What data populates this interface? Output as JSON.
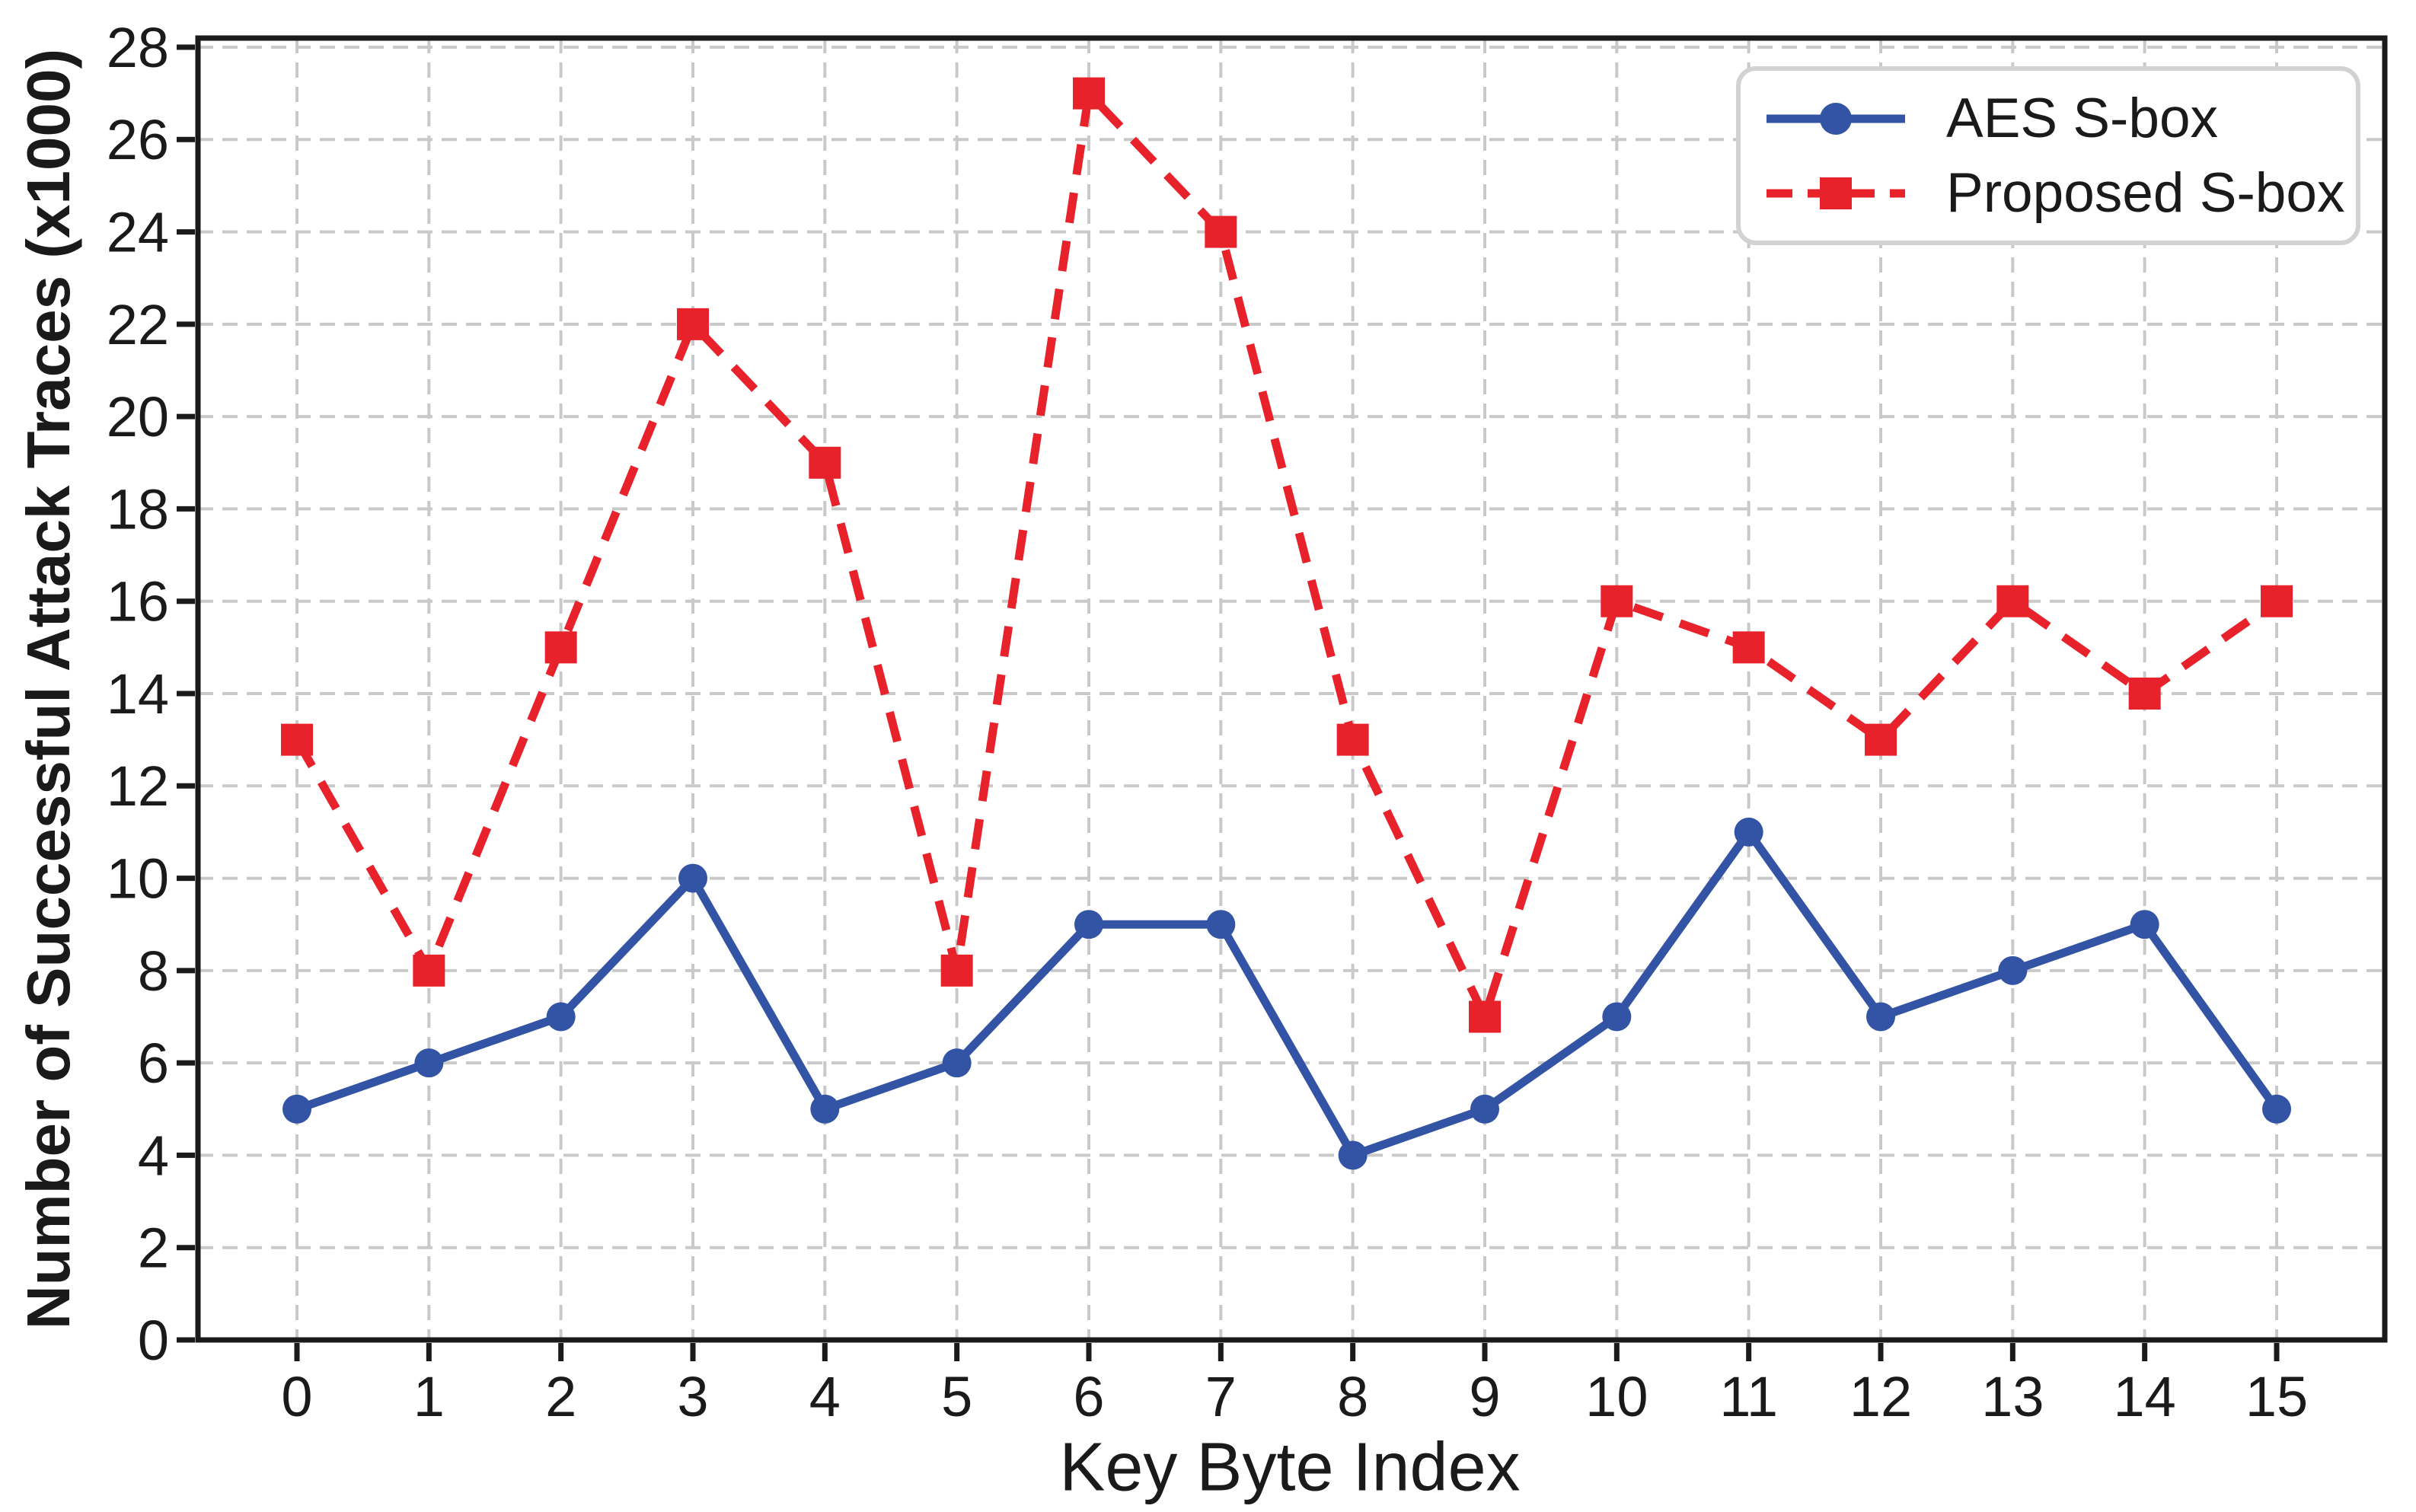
{
  "figure": {
    "xlabel": "Key Byte Index",
    "ylabel": "Number of Successful Attack Traces (x1000)",
    "background": "#ffffff"
  },
  "colors": {
    "axis": "#1a1a1a",
    "grid": "#c9c9c9",
    "legend_border": "#d2d2d2",
    "aes_blue": "#3353a4",
    "proposed_red": "#e8222a"
  },
  "chart_data": {
    "type": "line",
    "title": "",
    "xlabel": "Key Byte Index",
    "ylabel": "Number of Successful Attack Traces (x1000)",
    "x": [
      0,
      1,
      2,
      3,
      4,
      5,
      6,
      7,
      8,
      9,
      10,
      11,
      12,
      13,
      14,
      15
    ],
    "xticks": [
      "0",
      "1",
      "2",
      "3",
      "4",
      "5",
      "6",
      "7",
      "8",
      "9",
      "10",
      "11",
      "12",
      "13",
      "14",
      "15"
    ],
    "yticks": [
      0,
      2,
      4,
      6,
      8,
      10,
      12,
      14,
      16,
      18,
      20,
      22,
      24,
      26,
      28
    ],
    "ylim": [
      0,
      28.2
    ],
    "xlim": [
      -0.75,
      15.82
    ],
    "grid": true,
    "grid_style": "dashed",
    "legend_position": "upper right",
    "series": [
      {
        "name": "AES S-box",
        "color": "#3353a4",
        "marker": "circle",
        "line_style": "solid",
        "values": [
          5,
          6,
          7,
          10,
          5,
          6,
          9,
          9,
          4,
          5,
          7,
          11,
          7,
          8,
          9,
          5
        ]
      },
      {
        "name": "Proposed S-box",
        "color": "#e8222a",
        "marker": "square",
        "line_style": "dashed",
        "values": [
          13,
          8,
          15,
          22,
          19,
          8,
          27,
          24,
          13,
          7,
          16,
          15,
          13,
          16,
          14,
          16
        ]
      }
    ]
  }
}
